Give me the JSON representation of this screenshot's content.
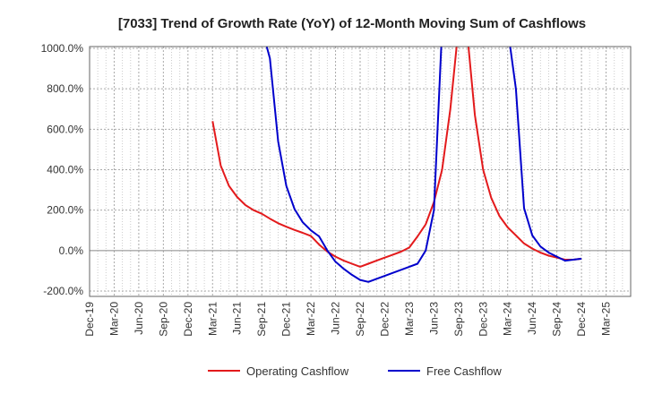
{
  "chart_data": {
    "type": "line",
    "title": "[7033]  Trend of Growth Rate (YoY) of 12-Month Moving Sum of Cashflows",
    "xlabel": "",
    "ylabel": "",
    "x_tick_labels": [
      "Dec-19",
      "Mar-20",
      "Jun-20",
      "Sep-20",
      "Dec-20",
      "Mar-21",
      "Jun-21",
      "Sep-21",
      "Dec-21",
      "Mar-22",
      "Jun-22",
      "Sep-22",
      "Dec-22",
      "Mar-23",
      "Jun-23",
      "Sep-23",
      "Dec-23",
      "Mar-24",
      "Jun-24",
      "Sep-24",
      "Dec-24",
      "Mar-25"
    ],
    "y_tick_labels": [
      "-200.0%",
      "0.0%",
      "200.0%",
      "400.0%",
      "600.0%",
      "800.0%",
      "1000.0%"
    ],
    "ylim": [
      -200,
      1000
    ],
    "grid": true,
    "legend_position": "bottom",
    "series": [
      {
        "name": "Operating Cashflow",
        "color": "#e31a1c",
        "points": [
          {
            "x": "2021-03",
            "y": 640
          },
          {
            "x": "2021-04",
            "y": 420
          },
          {
            "x": "2021-05",
            "y": 320
          },
          {
            "x": "2021-06",
            "y": 265
          },
          {
            "x": "2021-07",
            "y": 225
          },
          {
            "x": "2021-08",
            "y": 200
          },
          {
            "x": "2021-09",
            "y": 182
          },
          {
            "x": "2021-10",
            "y": 158
          },
          {
            "x": "2021-11",
            "y": 135
          },
          {
            "x": "2021-12",
            "y": 118
          },
          {
            "x": "2022-01",
            "y": 102
          },
          {
            "x": "2022-02",
            "y": 88
          },
          {
            "x": "2022-03",
            "y": 72
          },
          {
            "x": "2022-04",
            "y": 30
          },
          {
            "x": "2022-05",
            "y": -5
          },
          {
            "x": "2022-06",
            "y": -30
          },
          {
            "x": "2022-07",
            "y": -50
          },
          {
            "x": "2022-08",
            "y": -65
          },
          {
            "x": "2022-09",
            "y": -80
          },
          {
            "x": "2022-10",
            "y": -65
          },
          {
            "x": "2022-11",
            "y": -50
          },
          {
            "x": "2022-12",
            "y": -35
          },
          {
            "x": "2023-01",
            "y": -20
          },
          {
            "x": "2023-02",
            "y": -5
          },
          {
            "x": "2023-03",
            "y": 15
          },
          {
            "x": "2023-04",
            "y": 70
          },
          {
            "x": "2023-05",
            "y": 130
          },
          {
            "x": "2023-06",
            "y": 240
          },
          {
            "x": "2023-07",
            "y": 400
          },
          {
            "x": "2023-08",
            "y": 700
          },
          {
            "x": "2023-09",
            "y": 1100
          },
          {
            "x": "2023-10",
            "y": 1100
          },
          {
            "x": "2023-11",
            "y": 670
          },
          {
            "x": "2023-12",
            "y": 400
          },
          {
            "x": "2024-01",
            "y": 260
          },
          {
            "x": "2024-02",
            "y": 170
          },
          {
            "x": "2024-03",
            "y": 115
          },
          {
            "x": "2024-04",
            "y": 75
          },
          {
            "x": "2024-05",
            "y": 35
          },
          {
            "x": "2024-06",
            "y": 10
          },
          {
            "x": "2024-07",
            "y": -10
          },
          {
            "x": "2024-08",
            "y": -25
          },
          {
            "x": "2024-09",
            "y": -35
          },
          {
            "x": "2024-10",
            "y": -45
          },
          {
            "x": "2024-11",
            "y": -45
          },
          {
            "x": "2024-12",
            "y": -40
          }
        ]
      },
      {
        "name": "Free Cashflow",
        "color": "#0000cc",
        "points": [
          {
            "x": "2021-09",
            "y": 1100
          },
          {
            "x": "2021-10",
            "y": 950
          },
          {
            "x": "2021-11",
            "y": 540
          },
          {
            "x": "2021-12",
            "y": 320
          },
          {
            "x": "2022-01",
            "y": 205
          },
          {
            "x": "2022-02",
            "y": 140
          },
          {
            "x": "2022-03",
            "y": 100
          },
          {
            "x": "2022-04",
            "y": 70
          },
          {
            "x": "2022-05",
            "y": 0
          },
          {
            "x": "2022-06",
            "y": -55
          },
          {
            "x": "2022-07",
            "y": -90
          },
          {
            "x": "2022-08",
            "y": -120
          },
          {
            "x": "2022-09",
            "y": -145
          },
          {
            "x": "2022-10",
            "y": -155
          },
          {
            "x": "2022-11",
            "y": -140
          },
          {
            "x": "2022-12",
            "y": -125
          },
          {
            "x": "2023-01",
            "y": -110
          },
          {
            "x": "2023-02",
            "y": -95
          },
          {
            "x": "2023-03",
            "y": -80
          },
          {
            "x": "2023-04",
            "y": -65
          },
          {
            "x": "2023-05",
            "y": 0
          },
          {
            "x": "2023-06",
            "y": 200
          },
          {
            "x": "2023-07",
            "y": 1100
          },
          {
            "x": "2024-03",
            "y": 1100
          },
          {
            "x": "2024-04",
            "y": 800
          },
          {
            "x": "2024-05",
            "y": 210
          },
          {
            "x": "2024-06",
            "y": 75
          },
          {
            "x": "2024-07",
            "y": 20
          },
          {
            "x": "2024-08",
            "y": -10
          },
          {
            "x": "2024-09",
            "y": -30
          },
          {
            "x": "2024-10",
            "y": -50
          },
          {
            "x": "2024-11",
            "y": -45
          },
          {
            "x": "2024-12",
            "y": -40
          }
        ]
      }
    ]
  }
}
